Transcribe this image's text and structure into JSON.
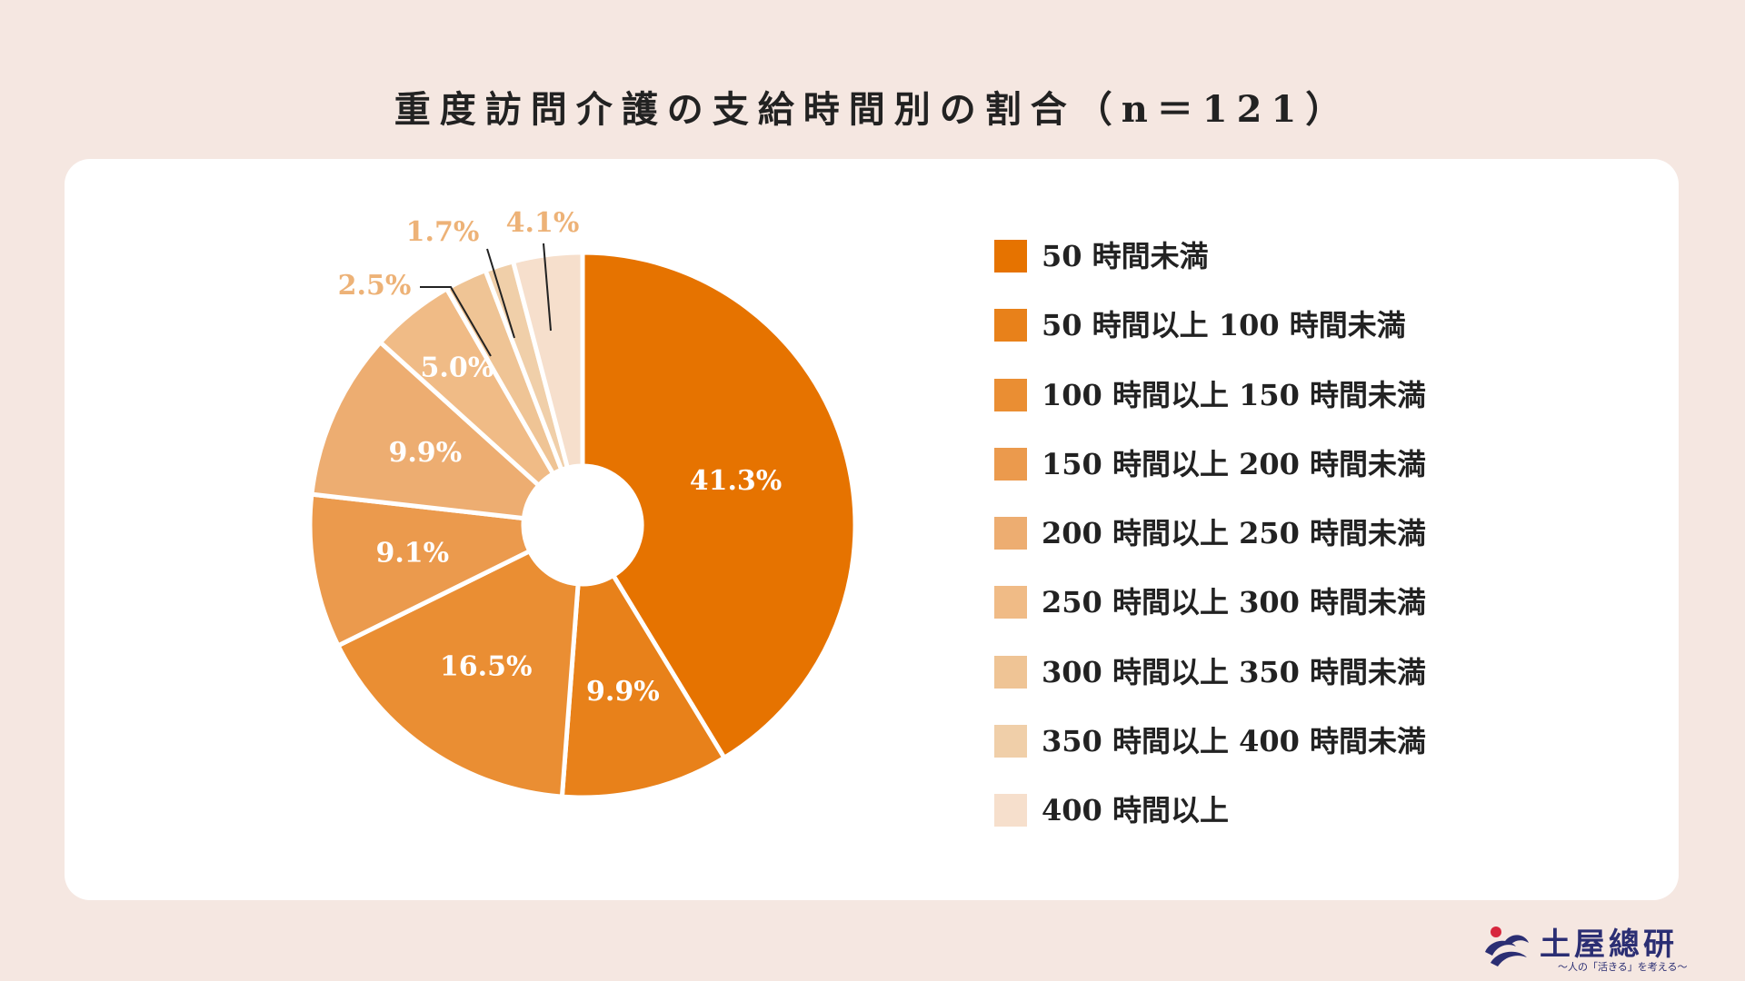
{
  "chart_data": {
    "type": "pie",
    "title": "重度訪問介護の支給時間別の割合（n＝121）",
    "categories": [
      "50 時間未満",
      "50 時間以上 100 時間未満",
      "100 時間以上 150 時間未満",
      "150 時間以上 200 時間未満",
      "200 時間以上 250 時間未満",
      "250 時間以上 300 時間未満",
      "300 時間以上 350 時間未満",
      "350 時間以上 400 時間未満",
      "400 時間以上"
    ],
    "values": [
      41.3,
      9.9,
      16.5,
      9.1,
      9.9,
      5.0,
      2.5,
      1.7,
      4.1
    ],
    "data_labels": [
      "41.3%",
      "9.9%",
      "16.5%",
      "9.1%",
      "9.9%",
      "5.0%",
      "2.5%",
      "1.7%",
      "4.1%"
    ],
    "colors": [
      "#E67300",
      "#E8811A",
      "#EA8E33",
      "#EB9A4D",
      "#EDAD71",
      "#F0BB86",
      "#EFC495",
      "#F0CFA9",
      "#F6DFCC"
    ],
    "label_colors": [
      "#FFFFFF",
      "#FFFFFF",
      "#FFFFFF",
      "#FFFFFF",
      "#FFFFFF",
      "#FFFFFF",
      "#EDB277",
      "#EDB277",
      "#EDB277"
    ],
    "legend_position": "right",
    "donut": true
  },
  "logo": {
    "name": "土屋總研",
    "tagline": "〜人の「活きる」を考える〜",
    "colors": {
      "navy": "#2B2E73",
      "red": "#D7263D"
    }
  }
}
